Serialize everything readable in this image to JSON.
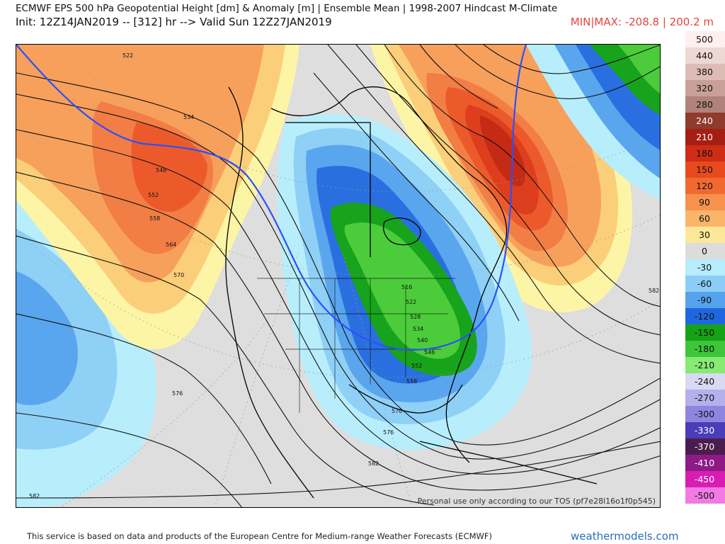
{
  "header": {
    "title": "ECMWF EPS 500 hPa Geopotential Height [dm] & Anomaly [m] | Ensemble Mean | 1998-2007 Hindcast M-Climate",
    "subtitle": "Init: 12Z14JAN2019 -- [312] hr --> Valid Sun 12Z27JAN2019",
    "minmax": "MIN|MAX: -208.8 | 200.2 m"
  },
  "map": {
    "tos_note": "Personal use only according to our TOS (pf7e28l16o1f0p545)",
    "contour_labels": [
      "522",
      "534",
      "546",
      "552",
      "558",
      "564",
      "570",
      "576",
      "582",
      "516",
      "522",
      "528",
      "534",
      "540",
      "546",
      "552",
      "558",
      "570",
      "576",
      "582",
      "582"
    ],
    "colors": {
      "neutral": "#dedede",
      "pos30": "#fdf5a6",
      "pos60": "#fbcf79",
      "pos90": "#f7a05c",
      "pos120": "#f27e45",
      "pos150": "#ec5a2c",
      "pos180": "#dc3e1e",
      "pos210": "#c42a14",
      "neg30": "#b8eefc",
      "neg60": "#8fd0f7",
      "neg90": "#5aa6ee",
      "neg120": "#2a6fe0",
      "neg150": "#17a31c",
      "neg180": "#4ccc3a",
      "neg210": "#8fee78",
      "contour": "#111111",
      "contour_540": "#2b50ff"
    }
  },
  "legend": [
    {
      "label": "500",
      "color": "#fdf0ef"
    },
    {
      "label": "440",
      "color": "#eed8d4"
    },
    {
      "label": "380",
      "color": "#ddbcb6"
    },
    {
      "label": "320",
      "color": "#c9a097"
    },
    {
      "label": "280",
      "color": "#b0827a"
    },
    {
      "label": "240",
      "color": "#8f3b2e"
    },
    {
      "label": "210",
      "color": "#a51e13"
    },
    {
      "label": "180",
      "color": "#cf2c15"
    },
    {
      "label": "150",
      "color": "#e84a1d"
    },
    {
      "label": "120",
      "color": "#f06a30"
    },
    {
      "label": "90",
      "color": "#f6924d"
    },
    {
      "label": "60",
      "color": "#fab56a"
    },
    {
      "label": "30",
      "color": "#fde89a"
    },
    {
      "label": "0",
      "color": "#dcdcdc"
    },
    {
      "label": "-30",
      "color": "#b6ecfb"
    },
    {
      "label": "-60",
      "color": "#8ccdf7"
    },
    {
      "label": "-90",
      "color": "#55a3ee"
    },
    {
      "label": "-120",
      "color": "#1f67e0"
    },
    {
      "label": "-150",
      "color": "#15a216"
    },
    {
      "label": "-180",
      "color": "#3fc53a"
    },
    {
      "label": "-210",
      "color": "#86ea74"
    },
    {
      "label": "-240",
      "color": "#d9d9f3"
    },
    {
      "label": "-270",
      "color": "#b3b0ec"
    },
    {
      "label": "-300",
      "color": "#8d86e0"
    },
    {
      "label": "-330",
      "color": "#4a3db8"
    },
    {
      "label": "-370",
      "color": "#4b1d4f"
    },
    {
      "label": "-410",
      "color": "#8e1a86"
    },
    {
      "label": "-450",
      "color": "#d81cb4"
    },
    {
      "label": "-500",
      "color": "#f27ae4"
    }
  ],
  "footer": {
    "credit": "This service is based on data and products of the European Centre for Medium-range Weather Forecasts (ECMWF)",
    "brand": "weathermodels.com"
  }
}
